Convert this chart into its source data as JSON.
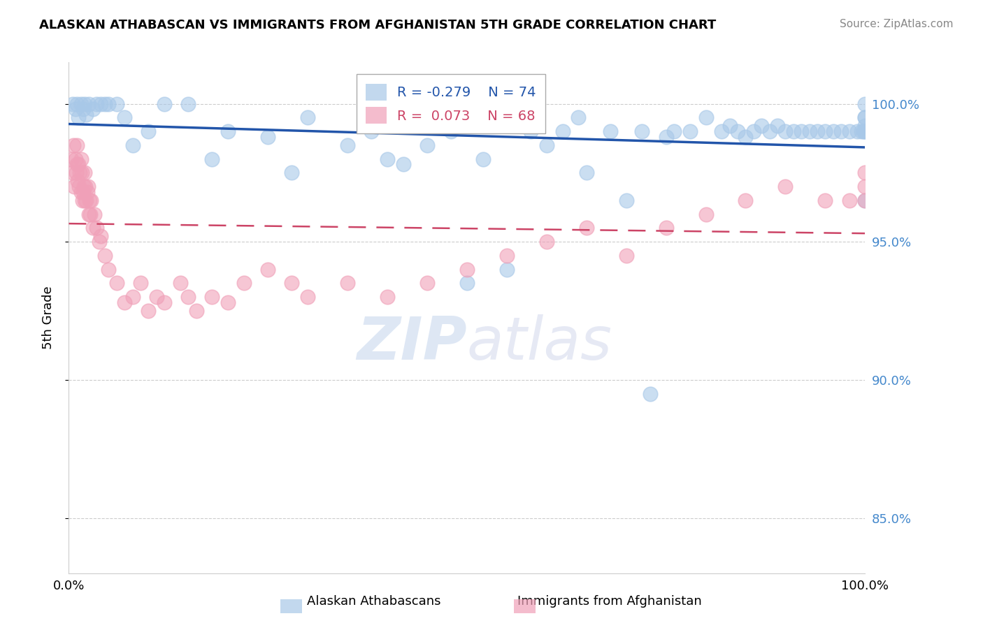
{
  "title": "ALASKAN ATHABASCAN VS IMMIGRANTS FROM AFGHANISTAN 5TH GRADE CORRELATION CHART",
  "source": "Source: ZipAtlas.com",
  "ylabel": "5th Grade",
  "ylabel_right_ticks": [
    85.0,
    90.0,
    95.0,
    100.0
  ],
  "x_min": 0.0,
  "x_max": 100.0,
  "y_min": 83.0,
  "y_max": 101.5,
  "legend_blue_R": "-0.279",
  "legend_blue_N": "74",
  "legend_pink_R": "0.073",
  "legend_pink_N": "68",
  "blue_color": "#a8c8e8",
  "pink_color": "#f0a0b8",
  "trend_blue_color": "#2255aa",
  "trend_pink_color": "#cc4466",
  "background_color": "#ffffff",
  "blue_scatter_x": [
    0.5,
    0.8,
    1.0,
    1.2,
    1.5,
    1.8,
    2.0,
    2.2,
    2.5,
    3.0,
    3.5,
    4.0,
    4.5,
    5.0,
    6.0,
    7.0,
    8.0,
    10.0,
    12.0,
    15.0,
    18.0,
    20.0,
    25.0,
    28.0,
    30.0,
    35.0,
    38.0,
    40.0,
    42.0,
    45.0,
    48.0,
    50.0,
    52.0,
    55.0,
    58.0,
    60.0,
    62.0,
    64.0,
    65.0,
    68.0,
    70.0,
    72.0,
    73.0,
    75.0,
    76.0,
    78.0,
    80.0,
    82.0,
    83.0,
    84.0,
    85.0,
    86.0,
    87.0,
    88.0,
    89.0,
    90.0,
    91.0,
    92.0,
    93.0,
    94.0,
    95.0,
    96.0,
    97.0,
    98.0,
    99.0,
    99.5,
    99.8,
    100.0,
    100.0,
    100.0,
    100.0,
    100.0,
    100.0,
    100.0
  ],
  "blue_scatter_y": [
    100.0,
    99.8,
    100.0,
    99.5,
    100.0,
    99.8,
    100.0,
    99.6,
    100.0,
    99.8,
    100.0,
    100.0,
    100.0,
    100.0,
    100.0,
    99.5,
    98.5,
    99.0,
    100.0,
    100.0,
    98.0,
    99.0,
    98.8,
    97.5,
    99.5,
    98.5,
    99.0,
    98.0,
    97.8,
    98.5,
    99.0,
    93.5,
    98.0,
    94.0,
    99.0,
    98.5,
    99.0,
    99.5,
    97.5,
    99.0,
    96.5,
    99.0,
    89.5,
    98.8,
    99.0,
    99.0,
    99.5,
    99.0,
    99.2,
    99.0,
    98.8,
    99.0,
    99.2,
    99.0,
    99.2,
    99.0,
    99.0,
    99.0,
    99.0,
    99.0,
    99.0,
    99.0,
    99.0,
    99.0,
    99.0,
    99.0,
    99.0,
    100.0,
    99.5,
    99.0,
    99.0,
    99.2,
    99.5,
    96.5
  ],
  "pink_scatter_x": [
    0.3,
    0.5,
    0.6,
    0.7,
    0.8,
    0.9,
    1.0,
    1.0,
    1.1,
    1.2,
    1.3,
    1.4,
    1.5,
    1.5,
    1.6,
    1.7,
    1.8,
    1.9,
    2.0,
    2.0,
    2.1,
    2.2,
    2.3,
    2.4,
    2.5,
    2.6,
    2.7,
    2.8,
    3.0,
    3.2,
    3.5,
    3.8,
    4.0,
    4.5,
    5.0,
    6.0,
    7.0,
    8.0,
    9.0,
    10.0,
    11.0,
    12.0,
    14.0,
    15.0,
    16.0,
    18.0,
    20.0,
    22.0,
    25.0,
    28.0,
    30.0,
    35.0,
    40.0,
    45.0,
    50.0,
    55.0,
    60.0,
    65.0,
    70.0,
    75.0,
    80.0,
    85.0,
    90.0,
    95.0,
    98.0,
    100.0,
    100.0,
    100.0
  ],
  "pink_scatter_y": [
    98.0,
    97.5,
    98.5,
    97.0,
    98.0,
    97.5,
    97.8,
    98.5,
    97.2,
    97.8,
    97.0,
    97.5,
    96.8,
    98.0,
    97.5,
    96.5,
    96.8,
    97.0,
    96.5,
    97.5,
    97.0,
    96.5,
    96.8,
    97.0,
    96.0,
    96.5,
    96.0,
    96.5,
    95.5,
    96.0,
    95.5,
    95.0,
    95.2,
    94.5,
    94.0,
    93.5,
    92.8,
    93.0,
    93.5,
    92.5,
    93.0,
    92.8,
    93.5,
    93.0,
    92.5,
    93.0,
    92.8,
    93.5,
    94.0,
    93.5,
    93.0,
    93.5,
    93.0,
    93.5,
    94.0,
    94.5,
    95.0,
    95.5,
    94.5,
    95.5,
    96.0,
    96.5,
    97.0,
    96.5,
    96.5,
    97.0,
    97.5,
    96.5
  ]
}
